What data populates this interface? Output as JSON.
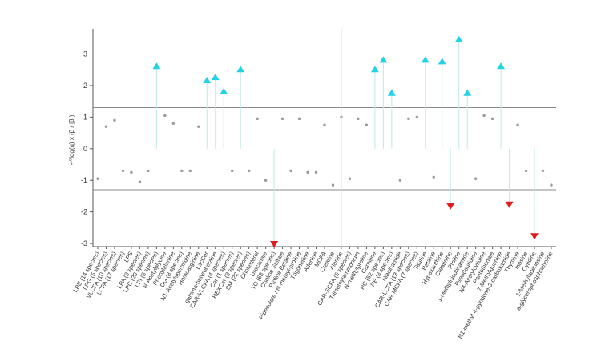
{
  "chart_data": {
    "type": "scatter",
    "ylabel": "-¹⁰log(q) x (β / |β|)",
    "ylim": [
      -3.1,
      3.8
    ],
    "yticks": [
      -3,
      -2,
      -1,
      0,
      1,
      2,
      3
    ],
    "threshold_lines": [
      1.3,
      -1.3
    ],
    "legend": "none",
    "grid": false,
    "colors": {
      "up": "#22d3e6",
      "down": "#e01b1b",
      "ns": "#9a9a9a",
      "stem": "#bfe9e6",
      "axis": "#555555",
      "threshold": "#888888"
    },
    "categories": [
      "LPE (14 species)",
      "LPG (5 species)",
      "VLCFA (10 species)",
      "LCFA (17 species)",
      "LPS",
      "LPA (3 species)",
      "LPC (20 species)",
      "LPI (3 species)",
      "N-Acetylglycine",
      "Phenylalanine",
      "DG (8 species)",
      "N1-Acetylspermidine",
      "Homoarginine",
      "LacCer",
      "gamma-butyrobetaine",
      "CAR-VLCFA (4 species)",
      "Cer (1 species)",
      "HEXCer (3 species)",
      "SM (22 species)",
      "Cholesterol",
      "Urocanate",
      "TG (63 species)",
      "Choline Sulfate",
      "Proline Betaine",
      "Pipecolate / N-methyl-proline",
      "Trigonelline",
      "Adenine",
      "MCFA",
      "Creatine",
      "Alanine",
      "CAR-SCFA (6 species)",
      "Trimethylammonium",
      "N-methylproline",
      "Carnitine",
      "PC (52 species)",
      "PE (3 species)",
      "Niacinamide",
      "CAR-LCFA (13 species)",
      "CAR-MCFA (7 species)",
      "Taurine",
      "Betaine",
      "Hypoxanthine",
      "Creatinine",
      "Proline",
      "1-Methylnicotinamide",
      "Pseudouridine",
      "N4-Acetylcytidine",
      "Pantothenate",
      "7-Methylguanine",
      "N1-methyl-4-pyridone-3-carboxamide",
      "Thymine",
      "Inosine",
      "Cytidine",
      "1-Methyladenosine",
      "a-glycerophosphocholine"
    ],
    "values": [
      -0.95,
      0.7,
      0.9,
      -0.7,
      -0.75,
      -1.05,
      -0.7,
      2.6,
      1.05,
      0.8,
      -0.7,
      -0.7,
      0.7,
      2.15,
      2.25,
      1.8,
      -0.7,
      2.5,
      -0.7,
      0.95,
      -1.0,
      -3.0,
      0.95,
      -0.7,
      0.95,
      -0.75,
      -0.75,
      0.75,
      -1.15,
      1.0,
      -0.95,
      0.95,
      0.75,
      2.5,
      2.8,
      1.75,
      -1.0,
      0.95,
      1.0,
      2.8,
      -0.9,
      2.75,
      -1.8,
      3.45,
      1.75,
      -0.95,
      1.05,
      0.95,
      2.6,
      -1.75,
      0.75,
      -0.7,
      -2.75,
      -0.7,
      -1.15
    ]
  }
}
